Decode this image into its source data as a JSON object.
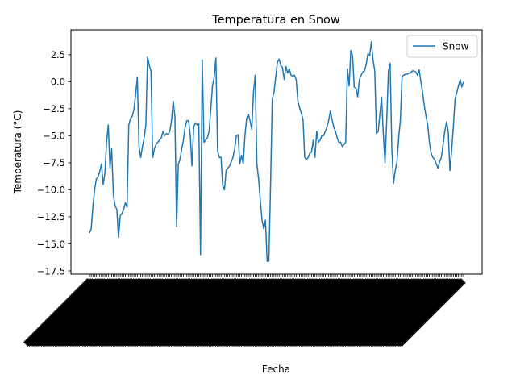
{
  "chart_data": {
    "type": "line",
    "title": "Temperatura en Snow",
    "xlabel": "Fecha",
    "ylabel": "Temperatura (°C)",
    "ylim": [
      -17.8,
      4.8
    ],
    "yticks": [
      2.5,
      0.0,
      -2.5,
      -5.0,
      -7.5,
      -10.0,
      -12.5,
      -15.0,
      -17.5
    ],
    "ytick_labels": [
      "2.5",
      "0.0",
      "−2.5",
      "−5.0",
      "−7.5",
      "−10.0",
      "−12.5",
      "−15.0",
      "−17.5"
    ],
    "x_tick_rotation": 45,
    "x_tick_labels_overlapping": true,
    "legend_position": "top-right",
    "grid": false,
    "series": [
      {
        "name": "Snow",
        "color": "#1f77b4",
        "values": [
          -14.0,
          -13.6,
          -11.5,
          -10.0,
          -9.0,
          -8.8,
          -8.3,
          -7.6,
          -9.5,
          -8.5,
          -5.6,
          -4.0,
          -8.0,
          -6.2,
          -10.5,
          -11.5,
          -11.8,
          -14.4,
          -12.4,
          -12.2,
          -11.8,
          -11.2,
          -11.6,
          -4.0,
          -3.4,
          -3.2,
          -2.6,
          -1.2,
          0.4,
          -6.0,
          -7.0,
          -6.0,
          -5.2,
          -4.0,
          2.3,
          1.5,
          1.0,
          -7.0,
          -6.2,
          -5.8,
          -5.6,
          -5.4,
          -5.2,
          -4.6,
          -5.0,
          -4.8,
          -4.9,
          -4.6,
          -3.6,
          -1.8,
          -3.2,
          -13.4,
          -7.6,
          -7.2,
          -6.2,
          -5.4,
          -4.2,
          -3.6,
          -3.6,
          -5.0,
          -7.8,
          -4.2,
          -3.8,
          -4.0,
          -3.9,
          -16.0,
          2.0,
          -5.6,
          -5.4,
          -5.2,
          -4.6,
          -2.6,
          -0.4,
          0.4,
          2.2,
          -6.4,
          -7.0,
          -7.0,
          -9.6,
          -10.0,
          -8.2,
          -8.0,
          -7.8,
          -7.4,
          -7.0,
          -6.2,
          -5.0,
          -4.9,
          -7.6,
          -6.8,
          -7.6,
          -5.0,
          -3.4,
          -3.0,
          -3.6,
          -4.4,
          -1.0,
          0.6,
          -7.6,
          -9.0,
          -11.0,
          -12.8,
          -13.6,
          -12.8,
          -16.6,
          -16.6,
          -9.6,
          -1.6,
          -1.0,
          0.4,
          1.8,
          2.1,
          1.5,
          1.3,
          0.2,
          1.4,
          0.8,
          1.2,
          0.6,
          0.5,
          0.6,
          0.2,
          -1.8,
          -2.4,
          -2.9,
          -3.5,
          -7.0,
          -7.2,
          -7.0,
          -6.6,
          -6.5,
          -5.4,
          -7.0,
          -4.6,
          -5.6,
          -5.4,
          -5.0,
          -5.0,
          -4.6,
          -4.2,
          -3.6,
          -2.7,
          -3.5,
          -4.2,
          -4.6,
          -5.2,
          -5.6,
          -5.6,
          -6.0,
          -5.8,
          -5.6,
          1.2,
          -0.4,
          2.9,
          2.4,
          -0.5,
          -0.6,
          -1.4,
          0.2,
          0.6,
          0.9,
          1.0,
          1.6,
          2.6,
          2.4,
          3.7,
          2.0,
          1.0,
          -4.8,
          -4.6,
          -3.0,
          -1.4,
          -4.8,
          -7.5,
          -3.6,
          1.0,
          1.7,
          -6.2,
          -9.4,
          -8.2,
          -7.4,
          -5.2,
          -3.5,
          0.5,
          0.6,
          0.7,
          0.7,
          0.8,
          0.8,
          1.0,
          1.0,
          0.9,
          0.6,
          1.1,
          0.0,
          -1.0,
          -2.2,
          -3.2,
          -4.0,
          -5.6,
          -6.6,
          -7.0,
          -7.2,
          -7.6,
          -8.0,
          -7.4,
          -7.0,
          -5.8,
          -4.6,
          -3.7,
          -4.6,
          -8.2,
          -6.4,
          -4.2,
          -1.6,
          -1.0,
          -0.4,
          0.2,
          -0.5,
          0.0
        ]
      }
    ]
  }
}
